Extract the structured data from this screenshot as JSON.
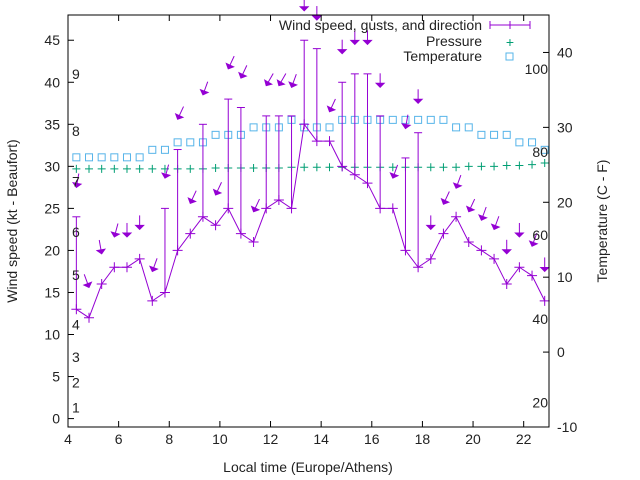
{
  "chart_data": {
    "type": "line",
    "title": "",
    "xlabel": "Local time (Europe/Athens)",
    "ylabel": "Wind speed (kt - Beaufort)",
    "y2label": "Temperature (C - F)",
    "xlim": [
      4,
      23
    ],
    "ylim": [
      -1,
      48
    ],
    "y2lim": [
      -10,
      45
    ],
    "xticks": [
      4,
      6,
      8,
      10,
      12,
      14,
      16,
      18,
      20,
      22
    ],
    "yticks": [
      0,
      5,
      10,
      15,
      20,
      25,
      30,
      35,
      40,
      45
    ],
    "y2ticks": [
      -10,
      0,
      10,
      20,
      30,
      40
    ],
    "legend_position": "top-right",
    "legend": [
      "Wind speed, gusts, and direction",
      "Pressure",
      "Temperature"
    ],
    "colors": {
      "wind": "#9400d3",
      "pressure": "#009e73",
      "temperature": "#56b4e9"
    },
    "x": [
      4.33,
      4.83,
      5.33,
      5.83,
      6.33,
      6.83,
      7.33,
      7.83,
      8.33,
      8.83,
      9.33,
      9.83,
      10.33,
      10.83,
      11.33,
      11.83,
      12.33,
      12.83,
      13.33,
      13.83,
      14.33,
      14.83,
      15.33,
      15.83,
      16.33,
      16.83,
      17.33,
      17.83,
      18.33,
      18.83,
      19.33,
      19.83,
      20.33,
      20.83,
      21.33,
      21.83,
      22.33,
      22.83
    ],
    "series": [
      {
        "name": "Wind speed, gusts, and direction",
        "values": [
          13,
          12,
          16,
          18,
          18,
          19,
          14,
          15,
          20,
          22,
          24,
          23,
          25,
          22,
          21,
          25,
          26,
          25,
          35,
          33,
          33,
          30,
          29,
          28,
          25,
          25,
          20,
          18,
          19,
          22,
          24,
          21,
          20,
          19,
          16,
          18,
          17,
          14
        ],
        "gusts": [
          24,
          null,
          null,
          null,
          null,
          null,
          null,
          25,
          32,
          null,
          35,
          null,
          38,
          37,
          null,
          36,
          36,
          36,
          45,
          44,
          null,
          40,
          41,
          41,
          36,
          null,
          31,
          34,
          null,
          null,
          null,
          null,
          null,
          null,
          null,
          null,
          null,
          null
        ],
        "direction_arrow_level": [
          27.5,
          15.6,
          19.6,
          21.6,
          21.6,
          22.5,
          17.5,
          28.6,
          35.6,
          25.6,
          38.5,
          26.6,
          41.6,
          40.5,
          24.6,
          39.6,
          39.6,
          39.4,
          48.5,
          47.4,
          36.5,
          43.4,
          44.5,
          44.5,
          39.4,
          28.6,
          34.5,
          37.5,
          22.5,
          25.5,
          27.4,
          24.6,
          23.6,
          22.5,
          19.6,
          21.6,
          20.5,
          17.5
        ],
        "direction_deg": [
          10,
          340,
          350,
          15,
          0,
          0,
          20,
          15,
          25,
          25,
          20,
          25,
          25,
          25,
          25,
          30,
          30,
          20,
          0,
          0,
          25,
          0,
          0,
          0,
          0,
          20,
          10,
          0,
          0,
          25,
          20,
          25,
          20,
          20,
          0,
          0,
          20,
          0
        ]
      },
      {
        "name": "Pressure",
        "axis": "y1",
        "values": [
          29.7,
          29.7,
          29.7,
          29.7,
          29.7,
          29.7,
          29.7,
          29.7,
          29.7,
          29.7,
          29.7,
          29.8,
          29.8,
          29.8,
          29.8,
          29.8,
          29.8,
          29.9,
          29.9,
          29.9,
          29.9,
          29.9,
          29.9,
          29.9,
          29.9,
          29.9,
          29.9,
          29.9,
          29.9,
          29.9,
          29.9,
          30.0,
          30.0,
          30.0,
          30.1,
          30.1,
          30.2,
          30.4
        ]
      },
      {
        "name": "Temperature",
        "axis": "y2",
        "values": [
          26,
          26,
          26,
          26,
          26,
          26,
          27,
          27,
          28,
          28,
          28,
          29,
          29,
          29,
          30,
          30,
          30,
          31,
          30,
          30,
          30,
          31,
          31,
          31,
          31,
          31,
          31,
          31,
          31,
          31,
          30,
          30,
          29,
          29,
          29,
          28,
          28,
          27
        ]
      }
    ],
    "beaufort_labels": [
      {
        "text": "1",
        "level": 1.3
      },
      {
        "text": "2",
        "level": 4.3
      },
      {
        "text": "3",
        "level": 7.3
      },
      {
        "text": "4",
        "level": 11.2
      },
      {
        "text": "5",
        "level": 17.1
      },
      {
        "text": "6",
        "level": 22.2
      },
      {
        "text": "7",
        "level": 28.2
      },
      {
        "text": "8",
        "level": 34.2
      },
      {
        "text": "9",
        "level": 41
      }
    ],
    "fahrenheit_labels": [
      {
        "text": "20",
        "celsius": -6.7
      },
      {
        "text": "40",
        "celsius": 4.4
      },
      {
        "text": "60",
        "celsius": 15.6
      },
      {
        "text": "80",
        "celsius": 26.7
      },
      {
        "text": "100",
        "celsius": 37.8
      }
    ]
  }
}
